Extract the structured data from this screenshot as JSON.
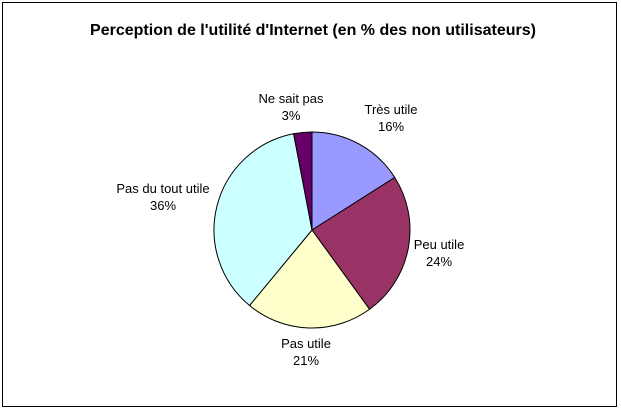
{
  "chart_data": {
    "type": "pie",
    "title": "Perception de l'utilité d'Internet (en % des non utilisateurs)",
    "slices": [
      {
        "label": "Très utile",
        "value": 16,
        "value_label": "16%",
        "color": "#9999ff"
      },
      {
        "label": "Peu utile",
        "value": 24,
        "value_label": "24%",
        "color": "#993366"
      },
      {
        "label": "Pas utile",
        "value": 21,
        "value_label": "21%",
        "color": "#ffffcc"
      },
      {
        "label": "Pas du tout utile",
        "value": 36,
        "value_label": "36%",
        "color": "#ccffff"
      },
      {
        "label": "Ne sait pas",
        "value": 3,
        "value_label": "3%",
        "color": "#660066"
      }
    ],
    "start_angle_deg": 0,
    "direction": "clockwise",
    "legend": "none"
  }
}
